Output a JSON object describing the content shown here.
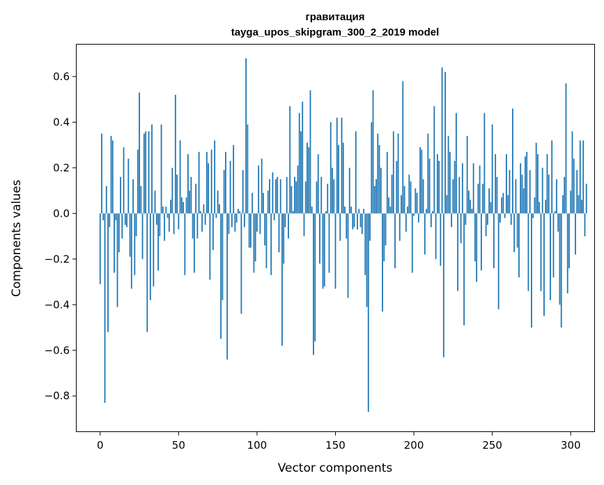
{
  "chart_data": {
    "type": "bar",
    "title": "гравитация",
    "subtitle": "tayga_upos_skipgram_300_2_2019 model",
    "xlabel": "Vector components",
    "ylabel": "Components values",
    "xlim": [
      -15,
      315
    ],
    "ylim": [
      -0.955,
      0.74
    ],
    "xticks": [
      0,
      50,
      100,
      150,
      200,
      250,
      300
    ],
    "xtick_labels": [
      "0",
      "50",
      "100",
      "150",
      "200",
      "250",
      "300"
    ],
    "yticks": [
      -0.8,
      -0.6,
      -0.4,
      -0.2,
      0.0,
      0.2,
      0.4,
      0.6
    ],
    "ytick_labels": [
      "−0.8",
      "−0.6",
      "−0.4",
      "−0.2",
      "0.0",
      "0.2",
      "0.4",
      "0.6"
    ],
    "bar_color": "#1f77b4",
    "grid": false,
    "values": [
      -0.31,
      0.35,
      -0.03,
      -0.83,
      0.12,
      -0.52,
      -0.06,
      0.34,
      0.32,
      -0.26,
      -0.03,
      -0.41,
      -0.17,
      0.16,
      -0.11,
      0.29,
      -0.05,
      -0.06,
      0.24,
      -0.19,
      -0.33,
      0.15,
      -0.27,
      -0.1,
      0.28,
      0.53,
      0.12,
      -0.2,
      0.35,
      0.36,
      -0.52,
      0.36,
      -0.38,
      0.39,
      -0.32,
      0.1,
      -0.05,
      -0.25,
      -0.1,
      0.39,
      0.03,
      -0.12,
      0.03,
      -0.02,
      -0.08,
      0.06,
      0.2,
      -0.09,
      0.52,
      0.17,
      -0.07,
      0.32,
      0.07,
      0.05,
      -0.27,
      0.07,
      0.26,
      0.1,
      0.16,
      -0.11,
      -0.26,
      0.13,
      -0.11,
      0.27,
      0.01,
      -0.08,
      0.04,
      -0.05,
      0.27,
      0.22,
      -0.29,
      0.28,
      -0.16,
      0.32,
      -0.02,
      0.1,
      0.04,
      -0.55,
      -0.38,
      0.19,
      0.27,
      -0.64,
      -0.09,
      0.23,
      -0.06,
      0.3,
      -0.08,
      -0.04,
      0.02,
      0.01,
      -0.44,
      0.19,
      -0.06,
      0.68,
      0.39,
      -0.15,
      -0.15,
      0.09,
      -0.26,
      -0.21,
      -0.08,
      0.21,
      -0.09,
      0.24,
      0.09,
      -0.14,
      -0.24,
      0.1,
      0.15,
      -0.27,
      0.18,
      -0.03,
      0.15,
      0.16,
      -0.17,
      0.15,
      -0.58,
      -0.22,
      -0.06,
      0.16,
      -0.11,
      0.47,
      0.12,
      0.01,
      0.16,
      0.14,
      0.21,
      0.44,
      0.36,
      0.49,
      -0.1,
      0.14,
      0.31,
      0.29,
      0.54,
      0.03,
      -0.62,
      -0.56,
      0.14,
      0.26,
      -0.22,
      0.16,
      -0.33,
      -0.32,
      0.01,
      0.13,
      -0.26,
      0.4,
      0.2,
      0.15,
      -0.33,
      0.42,
      0.3,
      -0.12,
      0.42,
      0.31,
      0.03,
      -0.11,
      -0.37,
      0.2,
      0.03,
      -0.07,
      -0.06,
      0.36,
      -0.07,
      0.02,
      -0.06,
      -0.09,
      0.02,
      -0.27,
      -0.41,
      -0.87,
      -0.12,
      0.4,
      0.54,
      0.12,
      0.15,
      0.35,
      0.3,
      0.2,
      -0.43,
      -0.21,
      -0.14,
      0.27,
      0.07,
      0.03,
      0.17,
      0.36,
      -0.24,
      0.23,
      0.35,
      -0.12,
      0.08,
      0.58,
      0.12,
      -0.08,
      0.03,
      0.17,
      0.14,
      -0.26,
      -0.01,
      0.11,
      0.09,
      -0.04,
      0.29,
      0.28,
      0.15,
      -0.18,
      0.02,
      0.35,
      0.24,
      -0.06,
      0.01,
      0.47,
      -0.2,
      0.26,
      0.23,
      -0.23,
      0.64,
      -0.63,
      0.62,
      0.08,
      0.34,
      0.27,
      -0.06,
      0.15,
      0.23,
      0.44,
      -0.34,
      0.16,
      -0.13,
      0.22,
      -0.49,
      -0.05,
      0.34,
      0.1,
      0.06,
      0.02,
      0.22,
      -0.21,
      -0.3,
      0.13,
      0.21,
      -0.25,
      0.13,
      0.44,
      -0.1,
      -0.05,
      0.11,
      0.05,
      0.39,
      -0.24,
      0.26,
      0.16,
      -0.42,
      -0.04,
      0.07,
      0.09,
      -0.02,
      0.26,
      0.08,
      0.19,
      -0.05,
      0.46,
      -0.17,
      0.15,
      -0.15,
      -0.28,
      0.22,
      0.17,
      0.11,
      0.25,
      0.27,
      -0.34,
      0.19,
      -0.5,
      -0.02,
      0.07,
      0.31,
      0.26,
      0.05,
      -0.34,
      0.2,
      -0.45,
      0.06,
      0.26,
      0.17,
      -0.38,
      0.32,
      -0.28,
      0.01,
      0.15,
      -0.08,
      -0.4,
      -0.5,
      0.08,
      0.16,
      0.57,
      -0.35,
      -0.24,
      0.1,
      0.36,
      0.24,
      -0.18,
      0.19,
      0.08,
      0.32,
      0.06,
      0.32,
      -0.1,
      0.13
    ]
  }
}
